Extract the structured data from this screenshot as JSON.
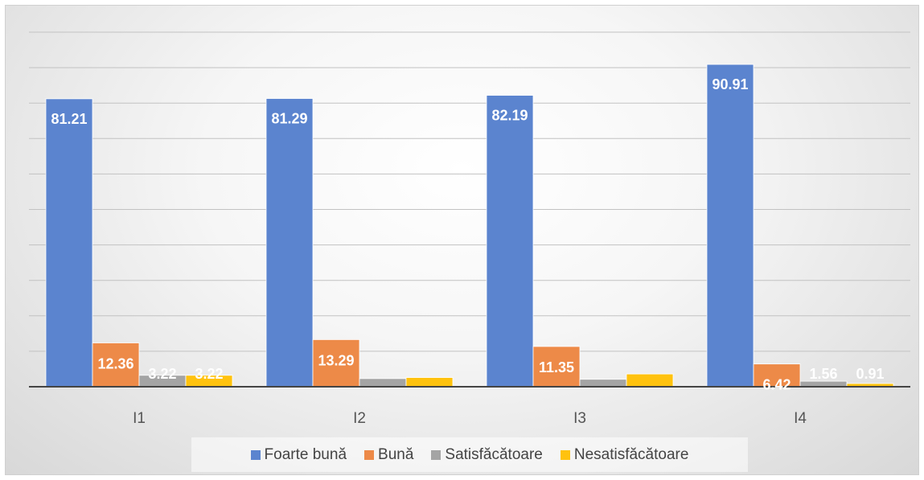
{
  "chart_data": {
    "type": "bar",
    "title": "",
    "xlabel": "",
    "ylabel": "",
    "ylim": [
      0,
      100
    ],
    "grid": true,
    "legend_position": "bottom",
    "categories": [
      "I1",
      "I2",
      "I3",
      "I4"
    ],
    "series": [
      {
        "name": "Foarte bună",
        "color": "#5b84cf",
        "values": [
          81.21,
          81.29,
          82.19,
          90.91
        ],
        "labels": [
          "81.21",
          "81.29",
          "82.19",
          "90.91"
        ]
      },
      {
        "name": "Bună",
        "color": "#ed8a48",
        "values": [
          12.36,
          13.29,
          11.35,
          6.42
        ],
        "labels": [
          "12.36",
          "13.29",
          "11.35",
          "6.42"
        ]
      },
      {
        "name": "Satisfăcătoare",
        "color": "#a4a4a4",
        "values": [
          3.22,
          2.3,
          2.1,
          1.56
        ],
        "labels": [
          "3.22",
          "",
          "",
          "1.56"
        ]
      },
      {
        "name": "Nesatisfăcătoare",
        "color": "#ffc20e",
        "values": [
          3.22,
          2.6,
          3.6,
          0.91
        ],
        "labels": [
          "3.22",
          "",
          "",
          "0.91"
        ]
      }
    ]
  }
}
